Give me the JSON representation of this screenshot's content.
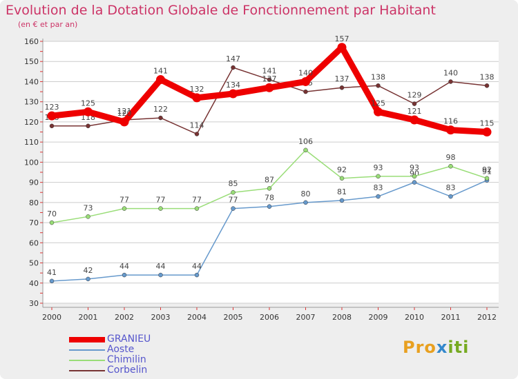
{
  "title": "Evolution de la Dotation Globale de Fonctionnement par Habitant",
  "subtitle": "(en € et par an)",
  "logo": {
    "p1": "Pro",
    "p2": "x",
    "p3": "iti"
  },
  "chart_data": {
    "type": "line",
    "title": "Evolution de la Dotation Globale de Fonctionnement par Habitant",
    "ylabel": "(en € et par an)",
    "categories": [
      "2000",
      "2001",
      "2002",
      "2003",
      "2004",
      "2005",
      "2006",
      "2007",
      "2008",
      "2009",
      "2010",
      "2011",
      "2012"
    ],
    "ylim": [
      30,
      160
    ],
    "yticks": [
      30,
      40,
      50,
      60,
      70,
      80,
      90,
      100,
      110,
      120,
      130,
      140,
      150,
      160
    ],
    "grid": true,
    "series": [
      {
        "name": "GRANIEU",
        "color": "#ee0000",
        "values": [
          123,
          125,
          120,
          141,
          132,
          134,
          137,
          140,
          157,
          125,
          121,
          116,
          115
        ]
      },
      {
        "name": "Aoste",
        "color": "#6699cc",
        "values": [
          41,
          42,
          44,
          44,
          44,
          77,
          78,
          80,
          81,
          83,
          90,
          83,
          91
        ]
      },
      {
        "name": "Chimilin",
        "color": "#99dd77",
        "values": [
          70,
          73,
          77,
          77,
          77,
          85,
          87,
          106,
          92,
          93,
          93,
          98,
          92
        ]
      },
      {
        "name": "Corbelin",
        "color": "#773333",
        "values": [
          118,
          118,
          121,
          122,
          114,
          147,
          141,
          135,
          137,
          138,
          129,
          140,
          138
        ]
      }
    ]
  }
}
